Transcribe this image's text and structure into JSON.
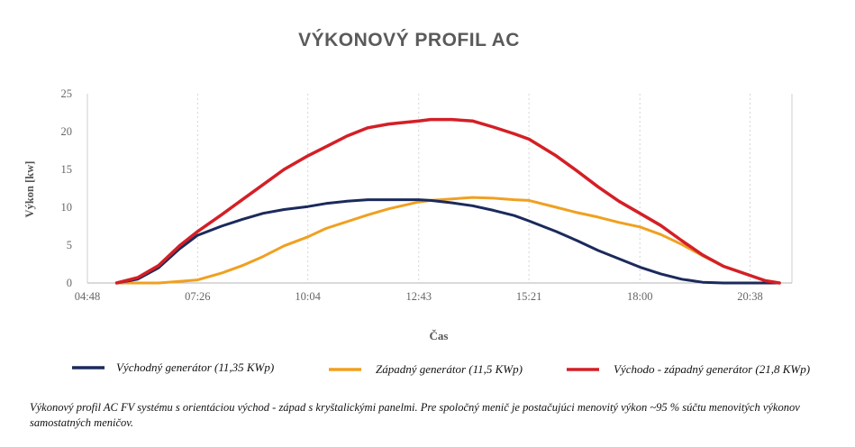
{
  "chart_data": {
    "type": "line",
    "title": "VÝKONOVÝ PROFIL AC",
    "xlabel": "Čas",
    "ylabel": "Výkon [kw]",
    "x_ticks": [
      "04:48",
      "07:26",
      "10:04",
      "12:43",
      "15:21",
      "18:00",
      "20:38"
    ],
    "xlim": [
      "04:48",
      "21:38"
    ],
    "y_ticks": [
      0,
      5,
      10,
      15,
      20,
      25
    ],
    "ylim": [
      0,
      25
    ],
    "grid": "vertical",
    "legend_position": "bottom",
    "x": [
      "05:30",
      "06:00",
      "06:30",
      "07:00",
      "07:26",
      "08:00",
      "08:30",
      "09:00",
      "09:30",
      "10:04",
      "10:30",
      "11:00",
      "11:30",
      "12:00",
      "12:43",
      "13:00",
      "13:30",
      "14:00",
      "14:30",
      "15:00",
      "15:21",
      "16:00",
      "16:30",
      "17:00",
      "17:30",
      "18:00",
      "18:30",
      "19:00",
      "19:30",
      "20:00",
      "20:38",
      "21:00",
      "21:20"
    ],
    "series": [
      {
        "name": "Východný generátor (11,35 KWp)",
        "color": "#1b2a5c",
        "values": [
          0,
          0.5,
          2.0,
          4.5,
          6.3,
          7.5,
          8.4,
          9.2,
          9.7,
          10.1,
          10.5,
          10.8,
          11.0,
          11.0,
          11.0,
          10.9,
          10.6,
          10.2,
          9.6,
          8.9,
          8.2,
          6.8,
          5.6,
          4.3,
          3.2,
          2.1,
          1.2,
          0.5,
          0.1,
          0,
          0,
          0,
          0
        ]
      },
      {
        "name": "Západný generátor (11,5 KWp)",
        "color": "#f0a020",
        "values": [
          0,
          0,
          0,
          0.2,
          0.4,
          1.3,
          2.3,
          3.5,
          4.9,
          6.1,
          7.2,
          8.1,
          9.0,
          9.8,
          10.7,
          10.9,
          11.1,
          11.3,
          11.2,
          11.0,
          10.9,
          10.0,
          9.3,
          8.7,
          8.0,
          7.4,
          6.4,
          5.1,
          3.6,
          2.2,
          1.0,
          0.3,
          0
        ]
      },
      {
        "name": "Východo - západný generátor (21,8 KWp)",
        "color": "#d41f26",
        "values": [
          0,
          0.7,
          2.3,
          4.9,
          6.8,
          9.0,
          11.0,
          13.0,
          15.0,
          16.8,
          18.0,
          19.4,
          20.5,
          21.0,
          21.4,
          21.6,
          21.6,
          21.4,
          20.6,
          19.7,
          19.0,
          16.8,
          14.8,
          12.7,
          10.8,
          9.2,
          7.6,
          5.6,
          3.7,
          2.2,
          1.0,
          0.3,
          0
        ]
      }
    ]
  },
  "caption": "Výkonový profil AC FV systému s orientáciou východ - západ s kryštalickými panelmi. Pre spoločný menič je postačujúci menovitý výkon ~95 % súčtu menovitých výkonov samostatných meničov."
}
